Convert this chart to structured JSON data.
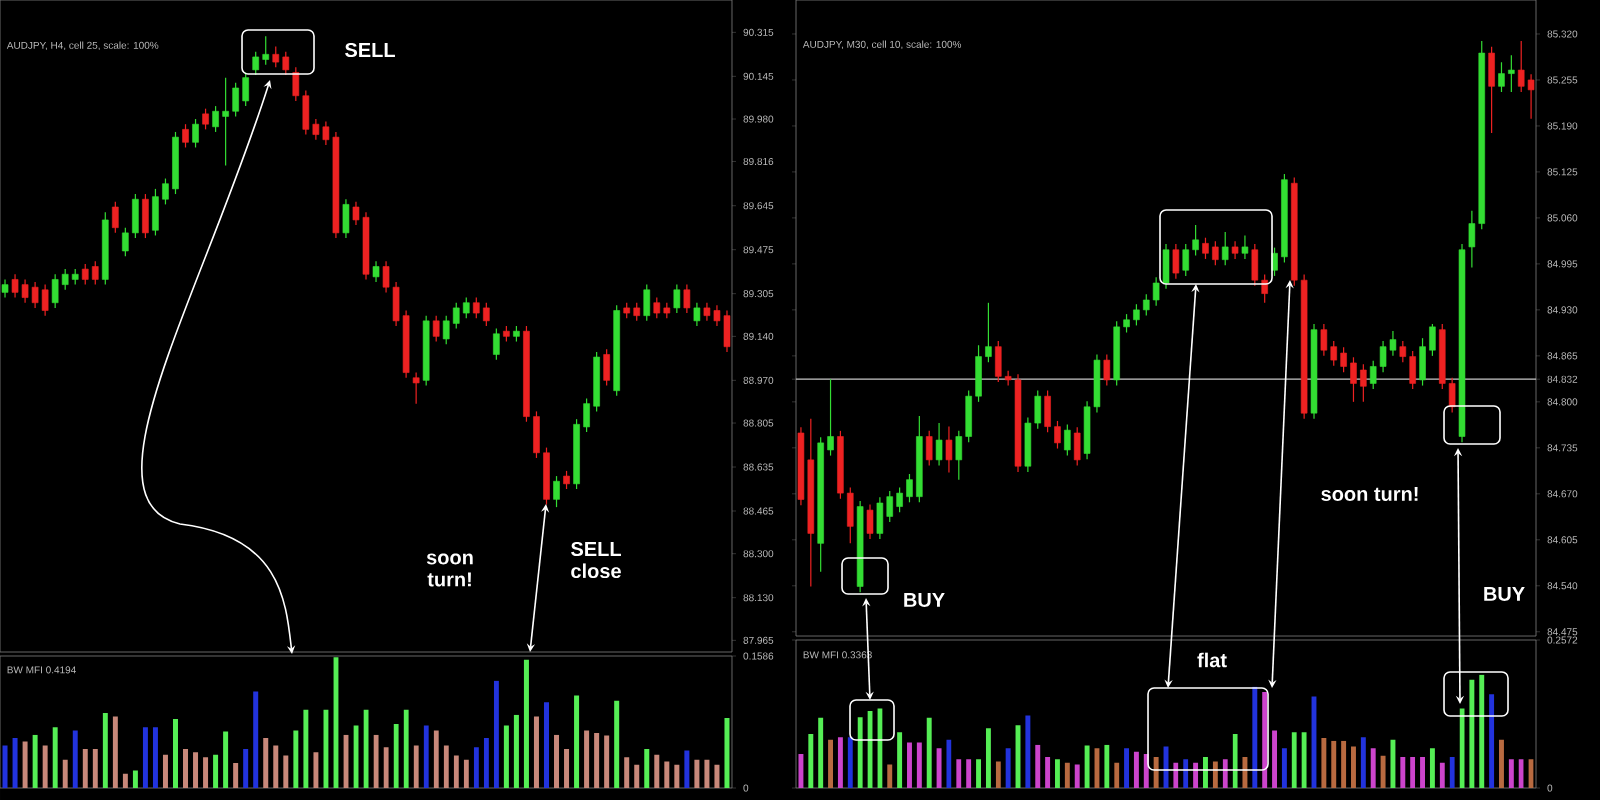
{
  "chart_data": [
    {
      "type": "candlestick",
      "title": "AUDJPY, H4, cell 25, scale: 100%",
      "categories": [
        null,
        null,
        null,
        null,
        null,
        null,
        null,
        null,
        null,
        null,
        null,
        null,
        null,
        null,
        null,
        null,
        null,
        null,
        null,
        null,
        null,
        null,
        null,
        null,
        null,
        null,
        null,
        null,
        null,
        null,
        null,
        null,
        null,
        null,
        null,
        null,
        null,
        null,
        null,
        null,
        null,
        null,
        null,
        null,
        null,
        null,
        null,
        null,
        null,
        null,
        null,
        null,
        null,
        null,
        null,
        null,
        null,
        null,
        null,
        null,
        null,
        null,
        null,
        null,
        null,
        null,
        null,
        null,
        null,
        null,
        null,
        null,
        null
      ],
      "ohlc": [
        [
          89.31,
          89.36,
          89.29,
          89.34
        ],
        [
          89.36,
          89.38,
          89.29,
          89.31
        ],
        [
          89.34,
          89.36,
          89.27,
          89.29
        ],
        [
          89.33,
          89.35,
          89.25,
          89.27
        ],
        [
          89.32,
          89.34,
          89.22,
          89.24
        ],
        [
          89.27,
          89.38,
          89.25,
          89.36
        ],
        [
          89.34,
          89.4,
          89.32,
          89.38
        ],
        [
          89.36,
          89.4,
          89.34,
          89.38
        ],
        [
          89.4,
          89.42,
          89.34,
          89.36
        ],
        [
          89.41,
          89.43,
          89.34,
          89.36
        ],
        [
          89.36,
          89.62,
          89.34,
          89.59
        ],
        [
          89.64,
          89.66,
          89.54,
          89.56
        ],
        [
          89.47,
          89.56,
          89.45,
          89.54
        ],
        [
          89.54,
          89.69,
          89.52,
          89.67
        ],
        [
          89.67,
          89.69,
          89.52,
          89.54
        ],
        [
          89.55,
          89.71,
          89.53,
          89.68
        ],
        [
          89.67,
          89.75,
          89.65,
          89.73
        ],
        [
          89.71,
          89.93,
          89.69,
          89.91
        ],
        [
          89.94,
          89.96,
          89.87,
          89.89
        ],
        [
          89.89,
          89.98,
          89.87,
          89.96
        ],
        [
          90.0,
          90.02,
          89.94,
          89.96
        ],
        [
          89.95,
          90.03,
          89.93,
          90.01
        ],
        [
          89.99,
          90.14,
          89.8,
          90.01
        ],
        [
          90.01,
          90.12,
          89.99,
          90.1
        ],
        [
          90.05,
          90.16,
          90.03,
          90.14
        ],
        [
          90.17,
          90.24,
          90.15,
          90.22
        ],
        [
          90.21,
          90.3,
          90.19,
          90.23
        ],
        [
          90.23,
          90.26,
          90.18,
          90.2
        ],
        [
          90.22,
          90.24,
          90.15,
          90.17
        ],
        [
          90.16,
          90.18,
          90.05,
          90.07
        ],
        [
          90.07,
          90.09,
          89.92,
          89.94
        ],
        [
          89.96,
          89.98,
          89.9,
          89.92
        ],
        [
          89.95,
          89.97,
          89.88,
          89.9
        ],
        [
          89.91,
          89.93,
          89.52,
          89.54
        ],
        [
          89.54,
          89.67,
          89.52,
          89.65
        ],
        [
          89.64,
          89.66,
          89.57,
          89.59
        ],
        [
          89.6,
          89.62,
          89.36,
          89.38
        ],
        [
          89.37,
          89.43,
          89.35,
          89.41
        ],
        [
          89.41,
          89.43,
          89.31,
          89.33
        ],
        [
          89.33,
          89.35,
          89.18,
          89.2
        ],
        [
          89.22,
          89.24,
          88.98,
          89.0
        ],
        [
          88.98,
          89.0,
          88.88,
          88.96
        ],
        [
          88.97,
          89.22,
          88.95,
          89.2
        ],
        [
          89.2,
          89.22,
          89.12,
          89.14
        ],
        [
          89.13,
          89.22,
          89.11,
          89.2
        ],
        [
          89.19,
          89.27,
          89.17,
          89.25
        ],
        [
          89.23,
          89.29,
          89.21,
          89.27
        ],
        [
          89.27,
          89.29,
          89.21,
          89.23
        ],
        [
          89.25,
          89.27,
          89.18,
          89.2
        ],
        [
          89.07,
          89.17,
          89.05,
          89.15
        ],
        [
          89.16,
          89.18,
          89.12,
          89.14
        ],
        [
          89.14,
          89.18,
          89.12,
          89.16
        ],
        [
          89.16,
          89.18,
          88.81,
          88.83
        ],
        [
          88.83,
          88.85,
          88.67,
          88.69
        ],
        [
          88.69,
          88.71,
          88.49,
          88.51
        ],
        [
          88.51,
          88.6,
          88.48,
          88.58
        ],
        [
          88.6,
          88.62,
          88.55,
          88.57
        ],
        [
          88.57,
          88.82,
          88.55,
          88.8
        ],
        [
          88.79,
          88.9,
          88.77,
          88.88
        ],
        [
          88.87,
          89.08,
          88.85,
          89.06
        ],
        [
          89.07,
          89.09,
          88.95,
          88.97
        ],
        [
          88.93,
          89.26,
          88.91,
          89.24
        ],
        [
          89.25,
          89.27,
          89.21,
          89.23
        ],
        [
          89.25,
          89.27,
          89.2,
          89.22
        ],
        [
          89.22,
          89.34,
          89.2,
          89.32
        ],
        [
          89.27,
          89.29,
          89.21,
          89.23
        ],
        [
          89.25,
          89.27,
          89.21,
          89.23
        ],
        [
          89.25,
          89.34,
          89.23,
          89.32
        ],
        [
          89.32,
          89.34,
          89.23,
          89.25
        ],
        [
          89.2,
          89.27,
          89.18,
          89.25
        ],
        [
          89.25,
          89.27,
          89.2,
          89.22
        ],
        [
          89.24,
          89.26,
          89.18,
          89.2
        ],
        [
          89.22,
          89.24,
          89.08,
          89.1
        ]
      ],
      "colors": [
        "#33dd33",
        "#ee2222",
        "#ee2222",
        "#ee2222",
        "#ee2222",
        "#33dd33",
        "#33dd33",
        "#33dd33",
        "#ee2222",
        "#ee2222",
        "#33dd33",
        "#ee2222",
        "#33dd33",
        "#33dd33",
        "#ee2222",
        "#33dd33",
        "#33dd33",
        "#33dd33",
        "#ee2222",
        "#33dd33",
        "#ee2222",
        "#33dd33",
        "#33dd33",
        "#33dd33",
        "#33dd33",
        "#33dd33",
        "#33dd33",
        "#ee2222",
        "#ee2222",
        "#ee2222",
        "#ee2222",
        "#ee2222",
        "#ee2222",
        "#ee2222",
        "#33dd33",
        "#ee2222",
        "#ee2222",
        "#33dd33",
        "#ee2222",
        "#ee2222",
        "#ee2222",
        "#ee2222",
        "#33dd33",
        "#ee2222",
        "#33dd33",
        "#33dd33",
        "#33dd33",
        "#ee2222",
        "#ee2222",
        "#33dd33",
        "#ee2222",
        "#33dd33",
        "#ee2222",
        "#ee2222",
        "#ee2222",
        "#33dd33",
        "#ee2222",
        "#33dd33",
        "#33dd33",
        "#33dd33",
        "#ee2222",
        "#33dd33",
        "#ee2222",
        "#ee2222",
        "#33dd33",
        "#ee2222",
        "#ee2222",
        "#33dd33",
        "#ee2222",
        "#33dd33",
        "#ee2222",
        "#ee2222",
        "#ee2222"
      ],
      "ylim": [
        87.92,
        90.44
      ],
      "yticks": [
        90.315,
        90.145,
        {
          "value": 89.98,
          "label": "89.980"
        },
        89.816,
        89.645,
        89.475,
        89.305,
        {
          "value": 89.14,
          "label": "89.140"
        },
        {
          "value": 88.97,
          "label": "88.970"
        },
        88.805,
        88.635,
        88.465,
        {
          "value": 88.3,
          "label": "88.300"
        },
        {
          "value": 88.13,
          "label": "88.130"
        },
        87.965
      ],
      "tick_labels": "y",
      "annotations": [
        "SELL",
        "soon turn!",
        "SELL close"
      ]
    },
    {
      "type": "bar",
      "title": "BW MFI 0.4194",
      "categories": [
        null,
        null,
        null,
        null,
        null,
        null,
        null,
        null,
        null,
        null,
        null,
        null,
        null,
        null,
        null,
        null,
        null,
        null,
        null,
        null,
        null,
        null,
        null,
        null,
        null,
        null,
        null,
        null,
        null,
        null,
        null,
        null,
        null,
        null,
        null,
        null,
        null,
        null,
        null,
        null,
        null,
        null,
        null,
        null,
        null,
        null,
        null,
        null,
        null,
        null,
        null,
        null,
        null,
        null,
        null,
        null,
        null,
        null,
        null,
        null,
        null,
        null,
        null,
        null,
        null,
        null,
        null,
        null,
        null,
        null,
        null,
        null,
        null
      ],
      "values": [
        0.051,
        0.06,
        0.056,
        0.064,
        0.051,
        0.073,
        0.034,
        0.069,
        0.047,
        0.047,
        0.09,
        0.086,
        0.017,
        0.021,
        0.073,
        0.073,
        0.04,
        0.083,
        0.047,
        0.043,
        0.037,
        0.04,
        0.068,
        0.03,
        0.047,
        0.116,
        0.06,
        0.051,
        0.039,
        0.069,
        0.094,
        0.043,
        0.094,
        0.157,
        0.064,
        0.075,
        0.094,
        0.064,
        0.049,
        0.077,
        0.094,
        0.051,
        0.075,
        0.069,
        0.051,
        0.039,
        0.034,
        0.049,
        0.06,
        0.129,
        0.075,
        0.088,
        0.154,
        0.086,
        0.103,
        0.064,
        0.047,
        0.111,
        0.069,
        0.066,
        0.063,
        0.105,
        0.037,
        0.028,
        0.047,
        0.04,
        0.032,
        0.028,
        0.045,
        0.034,
        0.034,
        0.028,
        0.084
      ],
      "colors": [
        "#2233dd",
        "#2233dd",
        "#c8887a",
        "#55ee55",
        "#c8887a",
        "#55ee55",
        "#c8887a",
        "#2233dd",
        "#c8887a",
        "#c8887a",
        "#55ee55",
        "#c8887a",
        "#c8887a",
        "#55ee55",
        "#2233dd",
        "#2233dd",
        "#c8887a",
        "#55ee55",
        "#c8887a",
        "#c8887a",
        "#c8887a",
        "#55ee55",
        "#55ee55",
        "#c8887a",
        "#2233dd",
        "#2233dd",
        "#c8887a",
        "#c8887a",
        "#c8887a",
        "#55ee55",
        "#55ee55",
        "#c8887a",
        "#55ee55",
        "#55ee55",
        "#c8887a",
        "#55ee55",
        "#55ee55",
        "#c8887a",
        "#c8887a",
        "#55ee55",
        "#55ee55",
        "#c8887a",
        "#2233dd",
        "#c8887a",
        "#c8887a",
        "#c8887a",
        "#c8887a",
        "#2233dd",
        "#2233dd",
        "#2233dd",
        "#55ee55",
        "#55ee55",
        "#55ee55",
        "#c8887a",
        "#2233dd",
        "#c8887a",
        "#c8887a",
        "#55ee55",
        "#c8887a",
        "#c8887a",
        "#c8887a",
        "#55ee55",
        "#c8887a",
        "#c8887a",
        "#55ee55",
        "#c8887a",
        "#c8887a",
        "#c8887a",
        "#2233dd",
        "#c8887a",
        "#c8887a",
        "#c8887a",
        "#55ee55"
      ],
      "ylim": [
        0,
        0.1586
      ],
      "yticks": [
        0,
        0.1586
      ],
      "tick_labels": "y"
    },
    {
      "type": "candlestick",
      "title": "AUDJPY, M30, cell 10, scale: 100%",
      "categories": [
        null,
        null,
        null,
        null,
        null,
        null,
        null,
        null,
        null,
        null,
        null,
        null,
        null,
        null,
        null,
        null,
        null,
        null,
        null,
        null,
        null,
        null,
        null,
        null,
        null,
        null,
        null,
        null,
        null,
        null,
        null,
        null,
        null,
        null,
        null,
        null,
        null,
        null,
        null,
        null,
        null,
        null,
        null,
        null,
        null,
        null,
        null,
        null,
        null,
        null,
        null,
        null,
        null,
        null,
        null,
        null,
        null,
        null,
        null,
        null,
        null,
        null,
        null,
        null,
        null,
        null,
        null,
        null,
        null,
        null,
        null,
        null,
        null,
        null,
        null
      ],
      "ohlc": [
        [
          84.756,
          84.764,
          84.654,
          84.662
        ],
        [
          84.718,
          84.776,
          84.539,
          84.614
        ],
        [
          84.6,
          84.75,
          84.56,
          84.742
        ],
        [
          84.732,
          84.832,
          84.724,
          84.751
        ],
        [
          84.751,
          84.759,
          84.663,
          84.671
        ],
        [
          84.671,
          84.679,
          84.6,
          84.624
        ],
        [
          84.539,
          84.66,
          84.531,
          84.652
        ],
        [
          84.647,
          84.655,
          84.606,
          84.614
        ],
        [
          84.614,
          84.665,
          84.606,
          84.657
        ],
        [
          84.638,
          84.674,
          84.63,
          84.666
        ],
        [
          84.652,
          84.679,
          84.644,
          84.671
        ],
        [
          84.666,
          84.698,
          84.658,
          84.69
        ],
        [
          84.666,
          84.78,
          84.658,
          84.751
        ],
        [
          84.751,
          84.759,
          84.71,
          84.718
        ],
        [
          84.718,
          84.77,
          84.71,
          84.746
        ],
        [
          84.746,
          84.765,
          84.7,
          84.718
        ],
        [
          84.718,
          84.759,
          84.69,
          84.751
        ],
        [
          84.751,
          84.816,
          84.743,
          84.808
        ],
        [
          84.808,
          84.88,
          84.8,
          84.864
        ],
        [
          84.864,
          84.94,
          84.856,
          84.878
        ],
        [
          84.878,
          84.886,
          84.828,
          84.836
        ],
        [
          84.836,
          84.844,
          84.823,
          84.831
        ],
        [
          84.831,
          84.839,
          84.701,
          84.709
        ],
        [
          84.709,
          84.778,
          84.701,
          84.77
        ],
        [
          84.77,
          84.816,
          84.762,
          84.808
        ],
        [
          84.808,
          84.816,
          84.757,
          84.765
        ],
        [
          84.765,
          84.773,
          84.734,
          84.742
        ],
        [
          84.732,
          84.768,
          84.724,
          84.76
        ],
        [
          84.756,
          84.764,
          84.71,
          84.718
        ],
        [
          84.727,
          84.801,
          84.719,
          84.793
        ],
        [
          84.793,
          84.867,
          84.785,
          84.859
        ],
        [
          84.859,
          84.867,
          84.823,
          84.831
        ],
        [
          84.831,
          84.914,
          84.823,
          84.906
        ],
        [
          84.906,
          84.924,
          84.898,
          84.916
        ],
        [
          84.916,
          84.938,
          84.908,
          84.93
        ],
        [
          84.93,
          84.952,
          84.922,
          84.944
        ],
        [
          84.944,
          84.976,
          84.936,
          84.968
        ],
        [
          84.968,
          85.023,
          84.96,
          85.015
        ],
        [
          85.015,
          85.023,
          84.974,
          84.982
        ],
        [
          84.986,
          85.023,
          84.978,
          85.015
        ],
        [
          85.015,
          85.05,
          85.007,
          85.029
        ],
        [
          85.024,
          85.032,
          85.002,
          85.01
        ],
        [
          85.019,
          85.027,
          84.993,
          85.001
        ],
        [
          85.001,
          85.04,
          84.993,
          85.019
        ],
        [
          85.019,
          85.027,
          85.002,
          85.01
        ],
        [
          85.01,
          85.035,
          85.002,
          85.019
        ],
        [
          85.015,
          85.023,
          84.964,
          84.972
        ],
        [
          84.972,
          84.98,
          84.94,
          84.953
        ],
        [
          84.986,
          85.018,
          84.978,
          85.01
        ],
        [
          85.005,
          85.122,
          84.997,
          85.114
        ],
        [
          85.109,
          85.117,
          84.964,
          84.972
        ],
        [
          84.972,
          84.98,
          84.776,
          84.784
        ],
        [
          84.784,
          84.91,
          84.776,
          84.902
        ],
        [
          84.902,
          84.91,
          84.865,
          84.873
        ],
        [
          84.878,
          84.886,
          84.851,
          84.859
        ],
        [
          84.869,
          84.877,
          84.842,
          84.85
        ],
        [
          84.855,
          84.863,
          84.8,
          84.826
        ],
        [
          84.845,
          84.853,
          84.8,
          84.822
        ],
        [
          84.826,
          84.858,
          84.818,
          84.85
        ],
        [
          84.85,
          84.886,
          84.842,
          84.878
        ],
        [
          84.873,
          84.9,
          84.865,
          84.888
        ],
        [
          84.878,
          84.886,
          84.856,
          84.864
        ],
        [
          84.864,
          84.872,
          84.818,
          84.826
        ],
        [
          84.831,
          84.89,
          84.823,
          84.878
        ],
        [
          84.873,
          84.91,
          84.865,
          84.906
        ],
        [
          84.902,
          84.91,
          84.818,
          84.826
        ],
        [
          84.826,
          84.834,
          84.785,
          84.793
        ],
        [
          84.751,
          85.023,
          84.743,
          85.015
        ],
        [
          85.019,
          85.07,
          84.99,
          85.052
        ],
        [
          85.052,
          85.31,
          85.044,
          85.293
        ],
        [
          85.293,
          85.302,
          85.18,
          85.246
        ],
        [
          85.246,
          85.28,
          85.238,
          85.264
        ],
        [
          85.264,
          85.29,
          85.238,
          85.269
        ],
        [
          85.269,
          85.31,
          85.238,
          85.246
        ],
        [
          85.255,
          85.263,
          85.2,
          85.241
        ]
      ],
      "colors": [
        "#ee2222",
        "#ee2222",
        "#33dd33",
        "#33dd33",
        "#ee2222",
        "#ee2222",
        "#33dd33",
        "#ee2222",
        "#33dd33",
        "#33dd33",
        "#33dd33",
        "#33dd33",
        "#33dd33",
        "#ee2222",
        "#33dd33",
        "#ee2222",
        "#33dd33",
        "#33dd33",
        "#33dd33",
        "#33dd33",
        "#ee2222",
        "#ee2222",
        "#ee2222",
        "#33dd33",
        "#33dd33",
        "#ee2222",
        "#ee2222",
        "#33dd33",
        "#ee2222",
        "#33dd33",
        "#33dd33",
        "#ee2222",
        "#33dd33",
        "#33dd33",
        "#33dd33",
        "#33dd33",
        "#33dd33",
        "#33dd33",
        "#ee2222",
        "#33dd33",
        "#33dd33",
        "#ee2222",
        "#ee2222",
        "#33dd33",
        "#ee2222",
        "#33dd33",
        "#ee2222",
        "#ee2222",
        "#33dd33",
        "#33dd33",
        "#ee2222",
        "#ee2222",
        "#33dd33",
        "#ee2222",
        "#ee2222",
        "#ee2222",
        "#ee2222",
        "#ee2222",
        "#33dd33",
        "#33dd33",
        "#33dd33",
        "#ee2222",
        "#ee2222",
        "#33dd33",
        "#33dd33",
        "#ee2222",
        "#ee2222",
        "#33dd33",
        "#33dd33",
        "#33dd33",
        "#ee2222",
        "#33dd33",
        "#33dd33",
        "#ee2222",
        "#ee2222"
      ],
      "ylim": [
        84.469,
        85.368
      ],
      "yticks": [
        {
          "value": 85.32,
          "label": "85.320"
        },
        85.255,
        {
          "value": 85.19,
          "label": "85.190"
        },
        85.125,
        {
          "value": 85.06,
          "label": "85.060"
        },
        84.995,
        {
          "value": 84.93,
          "label": "84.930"
        },
        84.865,
        84.832,
        {
          "value": 84.8,
          "label": "84.800"
        },
        84.735,
        {
          "value": 84.67,
          "label": "84.670"
        },
        84.605,
        {
          "value": 84.54,
          "label": "84.540"
        },
        84.475
      ],
      "ref_lines": [
        {
          "axis": "y",
          "value": 84.832,
          "color": "#c8c8c8"
        }
      ],
      "tick_labels": "y",
      "annotations": [
        "BUY",
        "soon turn!",
        "BUY"
      ]
    },
    {
      "type": "bar",
      "title": "BW MFI 0.3363",
      "categories": [
        null,
        null,
        null,
        null,
        null,
        null,
        null,
        null,
        null,
        null,
        null,
        null,
        null,
        null,
        null,
        null,
        null,
        null,
        null,
        null,
        null,
        null,
        null,
        null,
        null,
        null,
        null,
        null,
        null,
        null,
        null,
        null,
        null,
        null,
        null,
        null,
        null,
        null,
        null,
        null,
        null,
        null,
        null,
        null,
        null,
        null,
        null,
        null,
        null,
        null,
        null,
        null,
        null,
        null,
        null,
        null,
        null,
        null,
        null,
        null,
        null,
        null,
        null,
        null,
        null,
        null,
        null,
        null,
        null,
        null,
        null,
        null,
        null,
        null,
        null
      ],
      "values": [
        0.059,
        0.094,
        0.122,
        0.084,
        0.088,
        0.088,
        0.123,
        0.134,
        0.138,
        0.041,
        0.097,
        0.079,
        0.079,
        0.122,
        0.069,
        0.084,
        0.05,
        0.05,
        0.05,
        0.104,
        0.046,
        0.069,
        0.109,
        0.126,
        0.075,
        0.054,
        0.05,
        0.044,
        0.041,
        0.074,
        0.069,
        0.075,
        0.044,
        0.069,
        0.063,
        0.059,
        0.054,
        0.072,
        0.044,
        0.05,
        0.044,
        0.054,
        0.046,
        0.05,
        0.094,
        0.054,
        0.176,
        0.167,
        0.1,
        0.069,
        0.097,
        0.097,
        0.159,
        0.087,
        0.082,
        0.082,
        0.072,
        0.088,
        0.069,
        0.056,
        0.084,
        0.054,
        0.054,
        0.054,
        0.069,
        0.044,
        0.054,
        0.138,
        0.188,
        0.197,
        0.163,
        0.084,
        0.05,
        0.05,
        0.05
      ],
      "colors": [
        "#cc44cc",
        "#55ee55",
        "#55ee55",
        "#b86a40",
        "#cc44cc",
        "#2233dd",
        "#55ee55",
        "#55ee55",
        "#55ee55",
        "#b86a40",
        "#55ee55",
        "#cc44cc",
        "#cc44cc",
        "#55ee55",
        "#cc44cc",
        "#2233dd",
        "#cc44cc",
        "#cc44cc",
        "#55ee55",
        "#55ee55",
        "#b86a40",
        "#2233dd",
        "#55ee55",
        "#2233dd",
        "#cc44cc",
        "#cc44cc",
        "#55ee55",
        "#b86a40",
        "#cc44cc",
        "#55ee55",
        "#b86a40",
        "#55ee55",
        "#b86a40",
        "#2233dd",
        "#cc44cc",
        "#cc44cc",
        "#b86a40",
        "#2233dd",
        "#cc44cc",
        "#2233dd",
        "#cc44cc",
        "#55ee55",
        "#b86a40",
        "#cc44cc",
        "#55ee55",
        "#b86a40",
        "#2233dd",
        "#cc44cc",
        "#cc44cc",
        "#2233dd",
        "#55ee55",
        "#55ee55",
        "#2233dd",
        "#b86a40",
        "#b86a40",
        "#b86a40",
        "#b86a40",
        "#2233dd",
        "#cc44cc",
        "#b86a40",
        "#55ee55",
        "#cc44cc",
        "#cc44cc",
        "#cc44cc",
        "#55ee55",
        "#cc44cc",
        "#2233dd",
        "#55ee55",
        "#55ee55",
        "#55ee55",
        "#2233dd",
        "#b86a40",
        "#cc44cc",
        "#cc44cc",
        "#b86a40"
      ],
      "ylim": [
        0,
        0.2572
      ],
      "yticks": [
        0,
        0.2572
      ],
      "tick_labels": "y",
      "annotations": [
        "flat"
      ]
    }
  ]
}
